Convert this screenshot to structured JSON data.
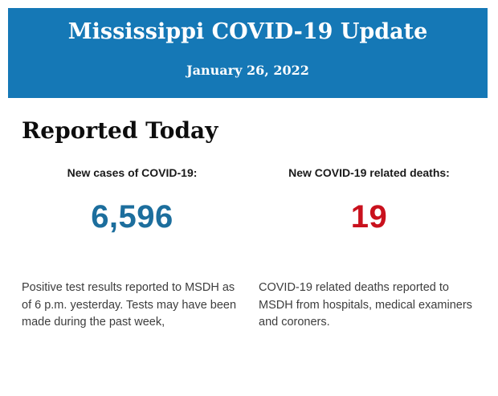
{
  "header": {
    "title": "Mississippi COVID-19 Update",
    "date": "January 26, 2022",
    "background_color": "#1578B6",
    "text_color": "#ffffff"
  },
  "section": {
    "heading": "Reported Today"
  },
  "stats": {
    "cases": {
      "label": "New cases of COVID-19:",
      "value": "6,596",
      "value_color": "#1C6E9D",
      "description": "Positive test results reported to MSDH as of 6 p.m. yesterday. Tests may have been made during the past week,"
    },
    "deaths": {
      "label": "New COVID-19 related deaths:",
      "value": "19",
      "value_color": "#C9111D",
      "description": "COVID-19 related deaths reported to MSDH from hospitals, medical examiners and coroners."
    }
  }
}
